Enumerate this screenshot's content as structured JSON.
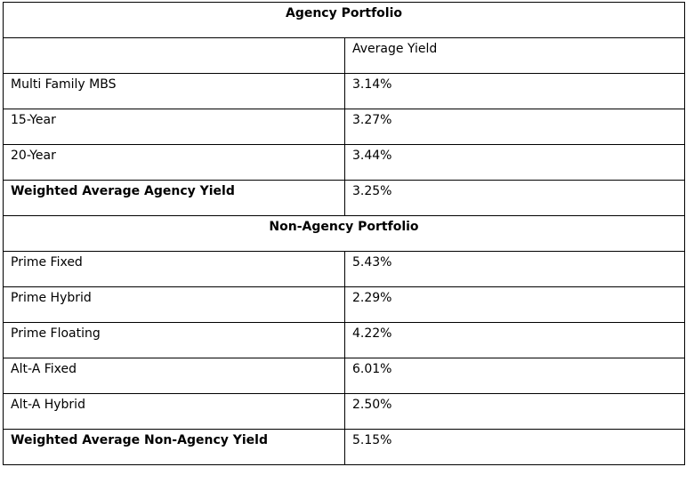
{
  "agency": {
    "title": "Agency Portfolio",
    "column_header": "Average Yield",
    "rows": [
      {
        "label": "Multi Family MBS",
        "value": "3.14%"
      },
      {
        "label": "15-Year",
        "value": "3.27%"
      },
      {
        "label": "20-Year",
        "value": "3.44%"
      }
    ],
    "weighted": {
      "label": "Weighted Average Agency Yield",
      "value": "3.25%"
    }
  },
  "non_agency": {
    "title": "Non-Agency Portfolio",
    "rows": [
      {
        "label": "Prime Fixed",
        "value": "5.43%"
      },
      {
        "label": "Prime Hybrid",
        "value": "2.29%"
      },
      {
        "label": "Prime Floating",
        "value": "4.22%"
      },
      {
        "label": "Alt-A Fixed",
        "value": "6.01%"
      },
      {
        "label": "Alt-A Hybrid",
        "value": "2.50%"
      }
    ],
    "weighted": {
      "label": "Weighted Average Non-Agency Yield",
      "value": "5.15%"
    }
  }
}
